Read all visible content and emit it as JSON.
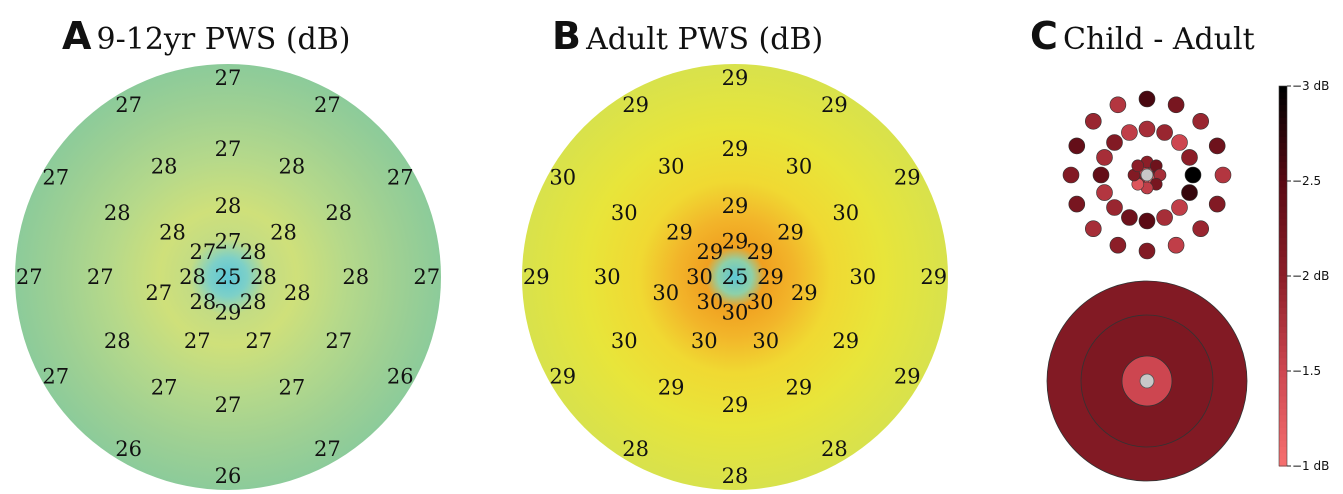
{
  "chart_data": [
    {
      "type": "heatmap",
      "panel": "A",
      "title": "9-12yr PWS (dB)",
      "center_value": 25,
      "rings": [
        {
          "radius_deg": 5,
          "values": [
            27,
            28,
            28,
            28,
            29,
            28,
            28,
            27
          ]
        },
        {
          "radius_deg": 10,
          "values": [
            28,
            28,
            28,
            27,
            27,
            27,
            28
          ]
        },
        {
          "radius_deg": 18,
          "values": [
            27,
            28,
            28,
            28,
            27,
            27,
            27,
            27,
            28,
            27,
            28,
            28
          ]
        },
        {
          "radius_deg": 28,
          "values": [
            27,
            27,
            27,
            27,
            26,
            27,
            26,
            26,
            27,
            27,
            27,
            27
          ]
        }
      ]
    },
    {
      "type": "heatmap",
      "panel": "B",
      "title": "Adult PWS (dB)",
      "center_value": 25,
      "rings": [
        {
          "radius_deg": 5,
          "values": [
            29,
            29,
            29,
            30,
            30,
            30,
            30,
            29
          ]
        },
        {
          "radius_deg": 10,
          "values": [
            29,
            29,
            29,
            30,
            30,
            30,
            29
          ]
        },
        {
          "radius_deg": 18,
          "values": [
            29,
            30,
            30,
            30,
            29,
            29,
            29,
            29,
            30,
            30,
            30,
            30
          ]
        },
        {
          "radius_deg": 28,
          "values": [
            29,
            29,
            29,
            29,
            29,
            28,
            28,
            28,
            29,
            29,
            30,
            29
          ]
        }
      ]
    },
    {
      "type": "scatter",
      "panel": "C",
      "title": "Child - Adult",
      "colorbar": {
        "range": [
          -3,
          -1
        ],
        "ticks": [
          "−3 dB",
          "−2.5",
          "−2 dB",
          "−1.5",
          "−1 dB"
        ],
        "tick_values": [
          -3,
          -2.5,
          -2,
          -1.5,
          -1
        ]
      },
      "center_value": null,
      "ring_values": [
        [
          -1.4,
          -1.2,
          -1.5,
          -2.2,
          -1.3,
          -1.1,
          -1.4,
          -1.8,
          -2.1,
          -1.6
        ],
        [
          -2.0,
          -2.3,
          -1.8,
          -2.2,
          -1.6,
          -1.3,
          -2.1,
          -2.0
        ],
        [
          -1.8,
          -1.9,
          -1.5,
          -2.0,
          -3.0,
          -2.7,
          -1.6,
          -1.8,
          -2.5,
          -2.3,
          -1.9,
          -1.7,
          -2.4,
          -1.8,
          -2.1,
          -1.6
        ],
        [
          -2.6,
          -2.2,
          -1.9,
          -2.3,
          -1.7,
          -2.1,
          -1.9,
          -1.6,
          -2.1,
          -2.0,
          -1.8,
          -2.2,
          -2.1,
          -2.4,
          -1.9,
          -1.7
        ]
      ],
      "zones": [
        {
          "name": "outer",
          "value": -2.1
        },
        {
          "name": "middle",
          "value": -2.15
        },
        {
          "name": "inner",
          "value": -1.5
        }
      ]
    }
  ],
  "titles": {
    "A": {
      "letter": "A",
      "text": "9-12yr PWS (dB)"
    },
    "B": {
      "letter": "B",
      "text": "Adult PWS (dB)"
    },
    "C": {
      "letter": "C",
      "text": "Child - Adult"
    }
  }
}
